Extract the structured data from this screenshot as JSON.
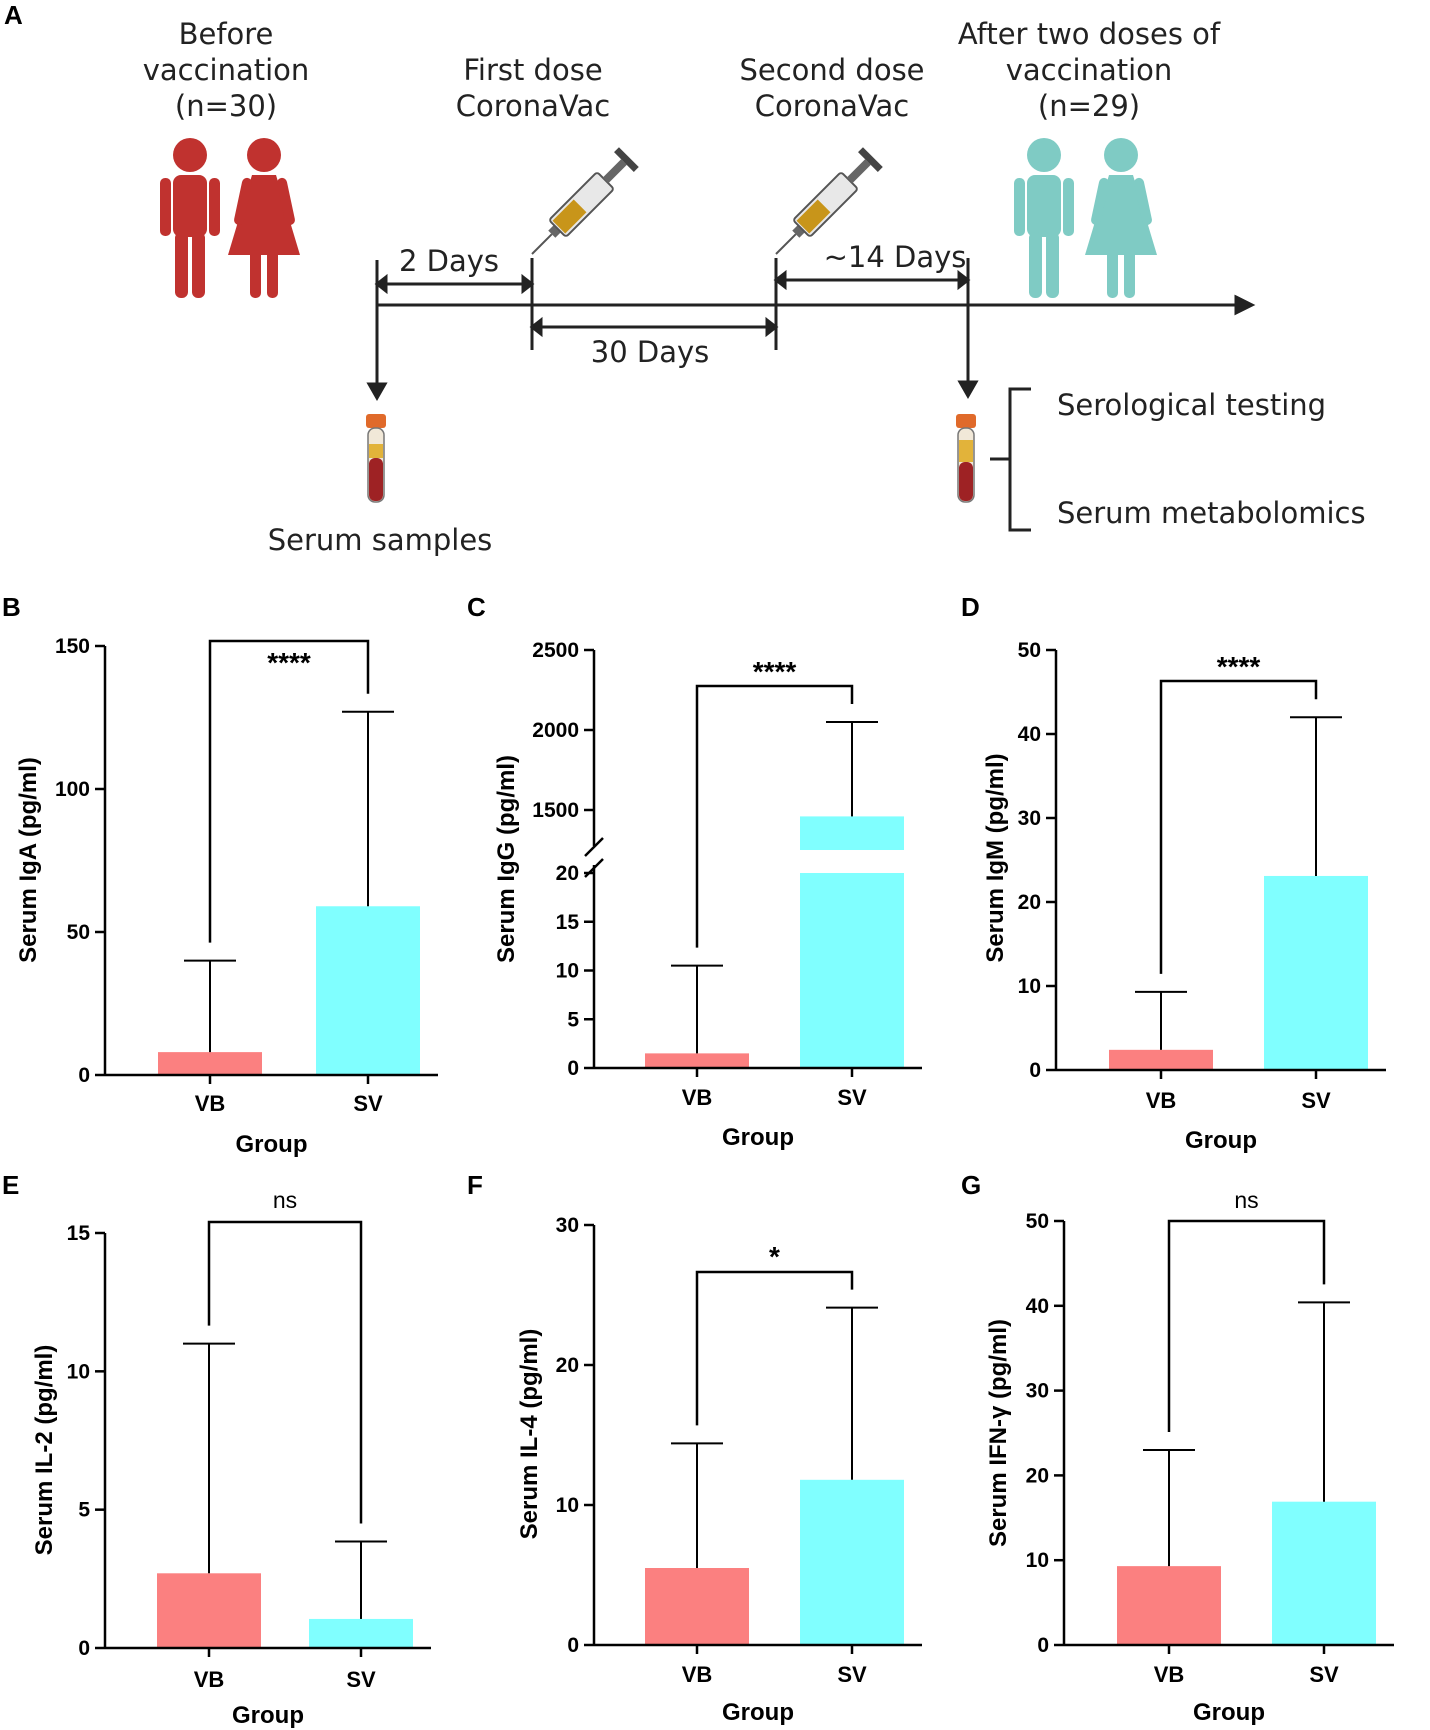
{
  "colors": {
    "before": "#c0322f",
    "after": "#7fcbc4",
    "vb_bar": "#fb8080",
    "sv_bar": "#80ffff",
    "syringe_fluid": "#c8951a",
    "tube_cap": "#e06a2a",
    "tube_blood": "#9e2224"
  },
  "diagram": {
    "panel_label": "A",
    "before_title": [
      "Before",
      "vaccination",
      "(n=30)"
    ],
    "first_dose": [
      "First dose",
      "CoronaVac"
    ],
    "second_dose": [
      "Second dose",
      "CoronaVac"
    ],
    "after_title": [
      "After two doses of",
      "vaccination",
      "(n=29)"
    ],
    "interval_1": "2 Days",
    "interval_2": "30 Days",
    "interval_3": "~14 Days",
    "serum_samples": "Serum samples",
    "tests": [
      "Serological testing",
      "Serum metabolomics"
    ],
    "icons": [
      "person-male-icon",
      "person-female-icon",
      "syringe-icon",
      "blood-tube-icon"
    ]
  },
  "chart_data": [
    {
      "panel": "B",
      "type": "bar",
      "title": "",
      "categories": [
        "VB",
        "SV"
      ],
      "values": [
        8,
        59
      ],
      "error_upper": [
        40,
        127
      ],
      "xlabel": "Group",
      "ylabel": "Serum IgA (pg/ml)",
      "ylim": [
        0,
        150
      ],
      "yticks": [
        "0",
        "50",
        "100",
        "150"
      ],
      "significance": "****",
      "legend": "none",
      "grid": false
    },
    {
      "panel": "C",
      "type": "bar",
      "title": "",
      "categories": [
        "VB",
        "SV"
      ],
      "values": [
        1.5,
        1460
      ],
      "error_upper": [
        10.5,
        2050
      ],
      "xlabel": "Group",
      "ylabel": "Serum IgG (pg/ml)",
      "broken_axis": true,
      "lower_ylim": [
        0,
        20
      ],
      "lower_yticks": [
        "0",
        "5",
        "10",
        "15",
        "20"
      ],
      "upper_ylim": [
        1250,
        2500
      ],
      "upper_yticks": [
        "1500",
        "2000",
        "2500"
      ],
      "significance": "****",
      "legend": "none",
      "grid": false
    },
    {
      "panel": "D",
      "type": "bar",
      "title": "",
      "categories": [
        "VB",
        "SV"
      ],
      "values": [
        2.4,
        23.1
      ],
      "error_upper": [
        9.3,
        42
      ],
      "xlabel": "Group",
      "ylabel": "Serum IgM (pg/ml)",
      "ylim": [
        0,
        50
      ],
      "yticks": [
        "0",
        "10",
        "20",
        "30",
        "40",
        "50"
      ],
      "significance": "****",
      "legend": "none",
      "grid": false
    },
    {
      "panel": "E",
      "type": "bar",
      "title": "",
      "categories": [
        "VB",
        "SV"
      ],
      "values": [
        2.7,
        1.05
      ],
      "error_upper": [
        11,
        3.85
      ],
      "xlabel": "Group",
      "ylabel": "Serum IL-2 (pg/ml)",
      "ylim": [
        0,
        15
      ],
      "yticks": [
        "0",
        "5",
        "10",
        "15"
      ],
      "significance": "ns",
      "legend": "none",
      "grid": false
    },
    {
      "panel": "F",
      "type": "bar",
      "title": "",
      "categories": [
        "VB",
        "SV"
      ],
      "values": [
        5.5,
        11.8
      ],
      "error_upper": [
        14.4,
        24.1
      ],
      "xlabel": "Group",
      "ylabel": "Serum IL-4 (pg/ml)",
      "ylim": [
        0,
        30
      ],
      "yticks": [
        "0",
        "10",
        "20",
        "30"
      ],
      "significance": "*",
      "legend": "none",
      "grid": false
    },
    {
      "panel": "G",
      "type": "bar",
      "title": "",
      "categories": [
        "VB",
        "SV"
      ],
      "values": [
        9.3,
        16.9
      ],
      "error_upper": [
        23,
        40.4
      ],
      "xlabel": "Group",
      "ylabel": "Serum IFN-γ (pg/ml)",
      "ylim": [
        0,
        50
      ],
      "yticks": [
        "0",
        "10",
        "20",
        "30",
        "40",
        "50"
      ],
      "significance": "ns",
      "legend": "none",
      "grid": false
    }
  ]
}
